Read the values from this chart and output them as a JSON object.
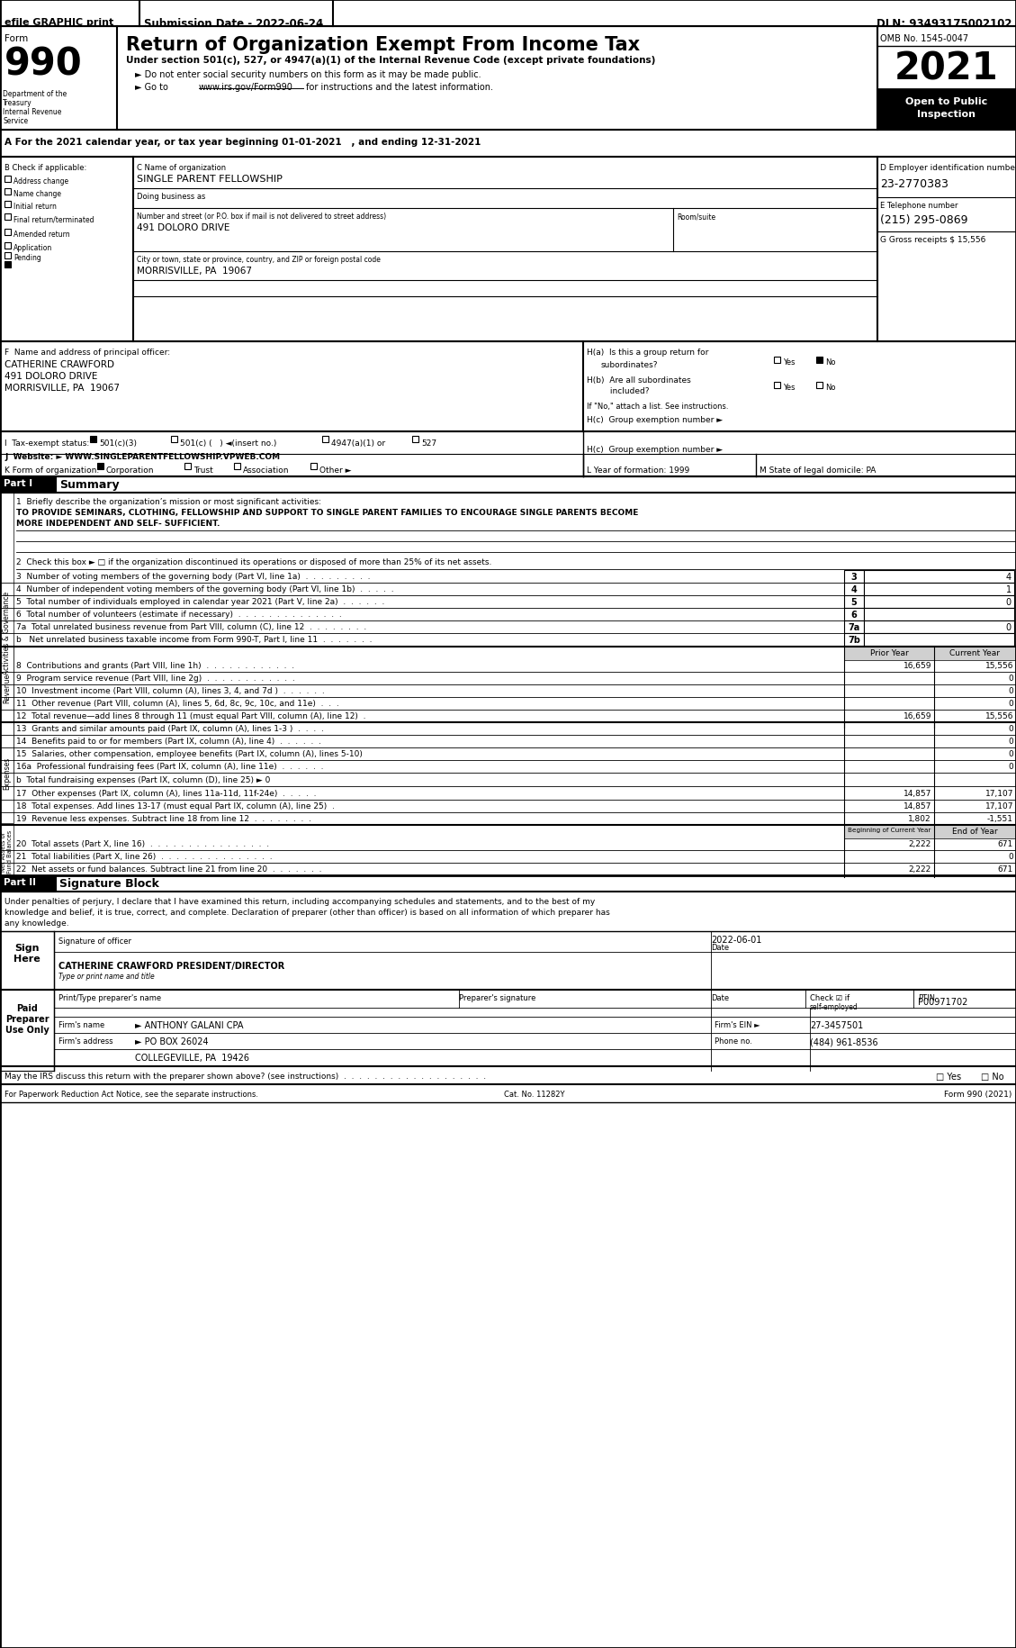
{
  "title": "Return of Organization Exempt From Income Tax",
  "year": "2021",
  "efile_header": "efile GRAPHIC print",
  "submission_date": "Submission Date - 2022-06-24",
  "dln": "DLN: 93493175002102",
  "omb": "OMB No. 1545-0047",
  "subtitle1": "Under section 501(c), 527, or 4947(a)(1) of the Internal Revenue Code (except private foundations)",
  "subtitle2": "► Do not enter social security numbers on this form as it may be made public.",
  "subtitle3": "► Go to www.irs.gov/Form990 for instructions and the latest information.",
  "section_a": "A For the 2021 calendar year, or tax year beginning 01-01-2021   , and ending 12-31-2021",
  "org_name": "SINGLE PARENT FELLOWSHIP",
  "ein": "23-2770383",
  "phone": "(215) 295-0869",
  "street_addr": "491 DOLORO DRIVE",
  "city_addr": "MORRISVILLE, PA  19067",
  "officer_name": "CATHERINE CRAWFORD",
  "officer_addr1": "491 DOLORO DRIVE",
  "officer_addr2": "MORRISVILLE, PA  19067",
  "website": "WWW.SINGLEPARENTFELLOWSHIP.VPWEB.COM",
  "line1_label": "1  Briefly describe the organization’s mission or most significant activities:",
  "line1_text1": "TO PROVIDE SEMINARS, CLOTHING, FELLOWSHIP AND SUPPORT TO SINGLE PARENT FAMILIES TO ENCOURAGE SINGLE PARENTS BECOME",
  "line1_text2": "MORE INDEPENDENT AND SELF- SUFFICIENT.",
  "line2_text": "2  Check this box ► □ if the organization discontinued its operations or disposed of more than 25% of its net assets.",
  "line3_text": "3  Number of voting members of the governing body (Part VI, line 1a)  .  .  .  .  .  .  .  .  .",
  "line4_text": "4  Number of independent voting members of the governing body (Part VI, line 1b)  .  .  .  .  .",
  "line5_text": "5  Total number of individuals employed in calendar year 2021 (Part V, line 2a)  .  .  .  .  .  .",
  "line6_text": "6  Total number of volunteers (estimate if necessary)  .  .  .  .  .  .  .  .  .  .  .  .  .  .",
  "line7a_text": "7a  Total unrelated business revenue from Part VIII, column (C), line 12  .  .  .  .  .  .  .  .",
  "line7b_text": "b   Net unrelated business taxable income from Form 990-T, Part I, line 11  .  .  .  .  .  .  .",
  "line8_text": "8  Contributions and grants (Part VIII, line 1h)  .  .  .  .  .  .  .  .  .  .  .  .",
  "line9_text": "9  Program service revenue (Part VIII, line 2g)  .  .  .  .  .  .  .  .  .  .  .  .",
  "line10_text": "10  Investment income (Part VIII, column (A), lines 3, 4, and 7d )  .  .  .  .  .  .",
  "line11_text": "11  Other revenue (Part VIII, column (A), lines 5, 6d, 8c, 9c, 10c, and 11e)  .  .  .",
  "line12_text": "12  Total revenue—add lines 8 through 11 (must equal Part VIII, column (A), line 12)  .",
  "line13_text": "13  Grants and similar amounts paid (Part IX, column (A), lines 1-3 )  .  .  .  .",
  "line14_text": "14  Benefits paid to or for members (Part IX, column (A), line 4)  .  .  .  .  .  .",
  "line15_text": "15  Salaries, other compensation, employee benefits (Part IX, column (A), lines 5-10)",
  "line16a_text": "16a  Professional fundraising fees (Part IX, column (A), line 11e)  .  .  .  .  .  .",
  "line16b_text": "b  Total fundraising expenses (Part IX, column (D), line 25) ► 0",
  "line17_text": "17  Other expenses (Part IX, column (A), lines 11a-11d, 11f-24e)  .  .  .  .  .",
  "line18_text": "18  Total expenses. Add lines 13-17 (must equal Part IX, column (A), line 25)  .",
  "line19_text": "19  Revenue less expenses. Subtract line 18 from line 12  .  .  .  .  .  .  .  .",
  "line20_text": "20  Total assets (Part X, line 16)  .  .  .  .  .  .  .  .  .  .  .  .  .  .  .  .",
  "line21_text": "21  Total liabilities (Part X, line 26)  .  .  .  .  .  .  .  .  .  .  .  .  .  .  .",
  "line22_text": "22  Net assets or fund balances. Subtract line 21 from line 20  .  .  .  .  .  .  .",
  "sig_text1": "Under penalties of perjury, I declare that I have examined this return, including accompanying schedules and statements, and to the best of my",
  "sig_text2": "knowledge and belief, it is true, correct, and complete. Declaration of preparer (other than officer) is based on all information of which preparer has",
  "sig_text3": "any knowledge.",
  "sig_name": "CATHERINE CRAWFORD PRESIDENT/DIRECTOR",
  "preparer_ptin": "P00971702",
  "firm_name": "► ANTHONY GALANI CPA",
  "firm_ein": "27-3457501",
  "firm_addr": "► PO BOX 26024",
  "firm_city": "COLLEGEVILLE, PA  19426",
  "firm_phone": "(484) 961-8536",
  "paperwork_text": "For Paperwork Reduction Act Notice, see the separate instructions.",
  "cat_label": "Cat. No. 11282Y",
  "form_label": "Form 990 (2021)"
}
